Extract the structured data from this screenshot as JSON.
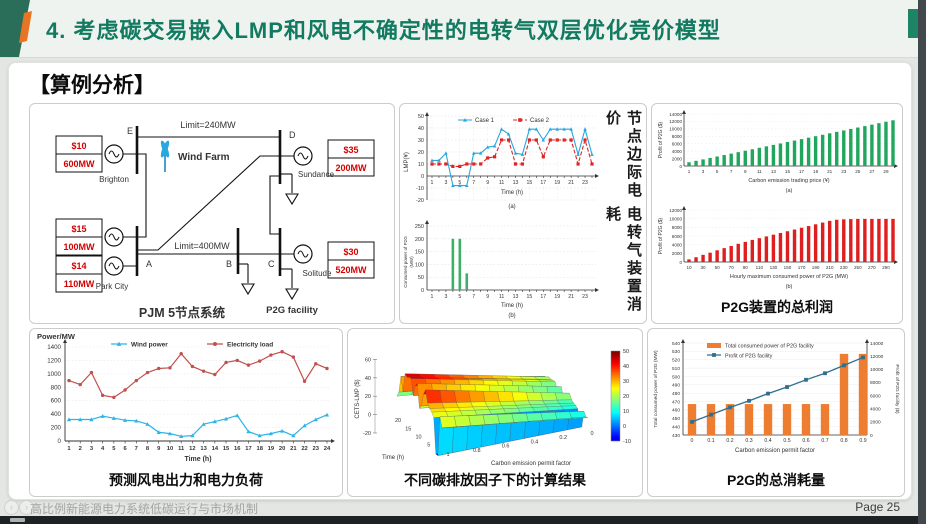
{
  "title": "4. 考虑碳交易嵌入LMP和风电不确定性的电转气双层优化竞价模型",
  "section_header": "【算例分析】",
  "footer": {
    "left": "高比例新能源电力系统低碳运行与市场机制",
    "right": "Page 25"
  },
  "nav": {
    "prev": "‹",
    "next": "›"
  },
  "colors": {
    "title_green": "#117a60",
    "deco_teal": "#2a6e5a",
    "deco_orange": "#e87424",
    "case1_blue": "#2aa6dd",
    "case2_red": "#e02424",
    "bar_green": "#21a75d",
    "bar_red": "#df1f1f",
    "wind_blue": "#2fb3e8",
    "load_red": "#c1504e",
    "combo_orange": "#ed7d31",
    "combo_line": "#2e6e8e"
  },
  "vertical_captions": [
    "节点边际电价",
    "电转气装置消耗"
  ],
  "captions": {
    "p2g_profit": "P2G装置的总利润",
    "wind_load": "预测风电出力和电力负荷",
    "surface": "不同碳排放因子下的计算结果",
    "p2g_total": "P2G的总消耗量"
  },
  "diagram": {
    "caption": "PJM 5节点系统",
    "limit_top": "Limit=240MW",
    "limit_mid": "Limit=400MW",
    "wind_farm": "Wind Farm",
    "p2g_facility": "P2G facility",
    "bus_labels": [
      "E",
      "D",
      "A",
      "B",
      "C"
    ],
    "gen_names": [
      "Brighton",
      "Sundance",
      "Park City",
      "Solitude"
    ],
    "price_boxes": [
      {
        "price": "$10",
        "capacity": "600MW"
      },
      {
        "price": "$35",
        "capacity": "200MW"
      },
      {
        "price": "$15",
        "capacity": "100MW"
      },
      {
        "price": "$14",
        "capacity": "110MW"
      },
      {
        "price": "$30",
        "capacity": "520MW"
      }
    ]
  },
  "chart_data": [
    {
      "id": "lmp",
      "type": "line",
      "sublabel": "(a)",
      "xlabel": "Time (h)",
      "ylabel": "LMP(¥)",
      "x": [
        1,
        2,
        3,
        4,
        5,
        6,
        7,
        8,
        9,
        10,
        11,
        12,
        13,
        14,
        15,
        16,
        17,
        18,
        19,
        20,
        21,
        22,
        23,
        24
      ],
      "ylim": [
        -20,
        50
      ],
      "ytick_step": 10,
      "grid": true,
      "legend_position": "top",
      "series": [
        {
          "name": "Case 1",
          "color": "#2aa6dd",
          "dashed": false,
          "values": [
            13,
            13,
            19,
            -8,
            -8,
            -8,
            19,
            19,
            24,
            25,
            39,
            35,
            19,
            18,
            39,
            39,
            30,
            39,
            39,
            39,
            39,
            18,
            39,
            18
          ]
        },
        {
          "name": "Case 2",
          "color": "#e02424",
          "dashed": true,
          "values": [
            10,
            10,
            10,
            8,
            8,
            10,
            10,
            10,
            15,
            16,
            30,
            30,
            10,
            10,
            30,
            30,
            16,
            30,
            30,
            30,
            30,
            10,
            30,
            10
          ]
        }
      ]
    },
    {
      "id": "p2g_consumed",
      "type": "bar",
      "sublabel": "(b)",
      "xlabel": "Time (h)",
      "ylabel": "Consumed power of P2G (MW)",
      "categories": [
        1,
        2,
        3,
        4,
        5,
        6,
        7,
        8,
        9,
        10,
        11,
        12,
        13,
        14,
        15,
        16,
        17,
        18,
        19,
        20,
        21,
        22,
        23,
        24
      ],
      "values": [
        0,
        0,
        0,
        200,
        200,
        65,
        0,
        0,
        0,
        0,
        0,
        0,
        0,
        0,
        0,
        0,
        0,
        0,
        0,
        0,
        0,
        0,
        0,
        0
      ],
      "ylim": [
        0,
        250
      ],
      "ytick_step": 50,
      "color": "#3cb06a",
      "grid": true
    },
    {
      "id": "profit_vs_price",
      "type": "bar",
      "sublabel": "(a)",
      "xlabel": "Carbon emission trading price (¥)",
      "ylabel": "Profit of P2G ($)",
      "categories": [
        1,
        2,
        3,
        4,
        5,
        6,
        7,
        8,
        9,
        10,
        11,
        12,
        13,
        14,
        15,
        16,
        17,
        18,
        19,
        20,
        21,
        22,
        23,
        24,
        25,
        26,
        27,
        28,
        29,
        30
      ],
      "values": [
        1000,
        1390,
        1780,
        2170,
        2560,
        2950,
        3340,
        3730,
        4120,
        4510,
        4900,
        5290,
        5680,
        6070,
        6460,
        6850,
        7240,
        7630,
        8020,
        8410,
        8800,
        9190,
        9580,
        9970,
        10360,
        10750,
        11140,
        11530,
        11920,
        12310
      ],
      "ylim": [
        0,
        14000
      ],
      "ytick_step": 2000,
      "color": "#21a75d",
      "grid": true
    },
    {
      "id": "profit_vs_power",
      "type": "bar",
      "sublabel": "(b)",
      "xlabel": "Hourly maximum consumed power of P2G (MW)",
      "ylabel": "Profit of P2G ($)",
      "categories": [
        10,
        20,
        30,
        40,
        50,
        60,
        70,
        80,
        90,
        100,
        110,
        120,
        130,
        140,
        150,
        160,
        170,
        180,
        190,
        200,
        210,
        220,
        230,
        240,
        250,
        260,
        270,
        280,
        290,
        300
      ],
      "values": [
        600,
        1100,
        1650,
        2150,
        2700,
        3200,
        3700,
        4200,
        4650,
        5100,
        5500,
        5900,
        6300,
        6700,
        7100,
        7500,
        7900,
        8300,
        8700,
        9100,
        9500,
        9750,
        9850,
        9900,
        9950,
        9950,
        9950,
        9950,
        9950,
        9950
      ],
      "ylim": [
        0,
        12000
      ],
      "ytick_step": 2000,
      "color": "#df1f1f",
      "grid": true
    },
    {
      "id": "wind_load",
      "type": "line",
      "sublabel": "",
      "xlabel": "Time (h)",
      "ylabel": "Power/MW",
      "x": [
        1,
        2,
        3,
        4,
        5,
        6,
        7,
        8,
        9,
        10,
        11,
        12,
        13,
        14,
        15,
        16,
        17,
        18,
        19,
        20,
        21,
        22,
        23,
        24
      ],
      "ylim": [
        0,
        1400
      ],
      "ytick_step": 200,
      "grid": true,
      "legend_position": "top",
      "series": [
        {
          "name": "Wind power",
          "color": "#2fb3e8",
          "dashed": false,
          "values": [
            320,
            320,
            320,
            370,
            340,
            310,
            300,
            250,
            130,
            110,
            70,
            80,
            250,
            290,
            330,
            380,
            140,
            80,
            110,
            150,
            80,
            230,
            320,
            390
          ]
        },
        {
          "name": "Electricity load",
          "color": "#c1504e",
          "dashed": false,
          "values": [
            900,
            840,
            1020,
            680,
            650,
            760,
            900,
            1020,
            1080,
            1090,
            1300,
            1110,
            1040,
            990,
            1170,
            1200,
            1130,
            1190,
            1280,
            1330,
            1250,
            890,
            1150,
            1080
          ]
        }
      ]
    },
    {
      "id": "surface",
      "type": "surface3d",
      "zlabel": "CETS-LMP ($)",
      "xlabel": "Time (h)",
      "ylabel": "Carbon emission permit factor",
      "zlim": [
        -20,
        60
      ],
      "ztick_step": 20,
      "time_ticks": [
        5,
        10,
        15,
        20
      ],
      "factor_ticks": [
        1,
        0.8,
        0.6,
        0.4,
        0.2,
        0
      ],
      "colorbar_ticks": [
        50,
        40,
        30,
        20,
        10,
        0,
        -10
      ],
      "base_wave": [
        20,
        18,
        28,
        -14,
        -14,
        22,
        26,
        28,
        32,
        44,
        38,
        24,
        20,
        44,
        40,
        28,
        44,
        44,
        42,
        44,
        24,
        38,
        20,
        14
      ]
    },
    {
      "id": "p2g_total",
      "type": "combo",
      "xlabel": "Carbon emission permit factor",
      "ylabel_left": "Total consumed power of P2G (MW)",
      "ylabel_right": "Profit of P2G facility ($)",
      "categories": [
        0,
        0.1,
        0.2,
        0.3,
        0.4,
        0.5,
        0.6,
        0.7,
        0.8,
        0.9
      ],
      "ylim_left": [
        430,
        540
      ],
      "ytick_step_left": 10,
      "ylim_right": [
        0,
        14000
      ],
      "ytick_step_right": 2000,
      "bars": {
        "name": "Total consumed power of P2G facility",
        "color": "#ed7d31",
        "values": [
          467,
          467,
          467,
          467,
          467,
          467,
          467,
          467,
          527,
          527
        ]
      },
      "line": {
        "name": "Profit of P2G facility",
        "color": "#2e6e8e",
        "values": [
          2000,
          3100,
          4200,
          5200,
          6300,
          7300,
          8400,
          9400,
          10600,
          11800
        ]
      }
    }
  ]
}
